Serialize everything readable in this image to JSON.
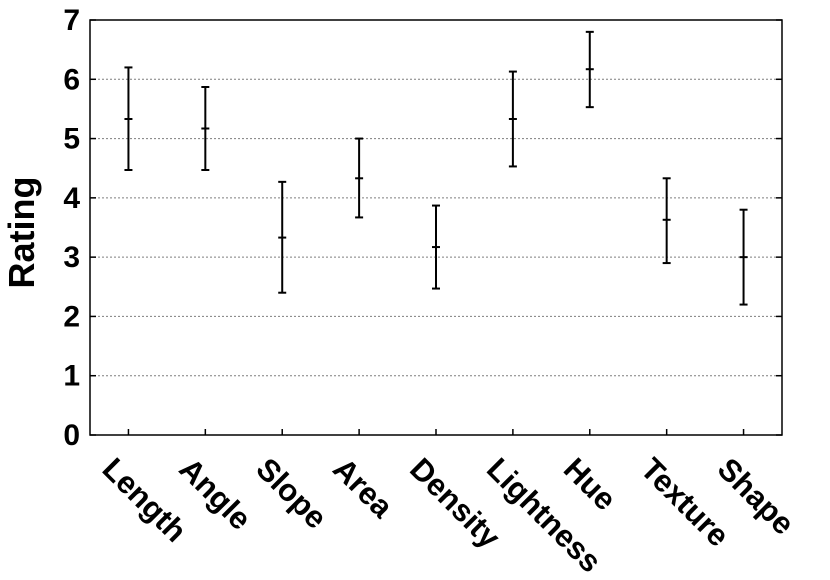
{
  "chart_data": {
    "type": "errorbar",
    "title": "",
    "xlabel": "",
    "ylabel": "Rating",
    "ylim": [
      0,
      7
    ],
    "yticks": [
      "0",
      "1",
      "2",
      "3",
      "4",
      "5",
      "6",
      "7"
    ],
    "grid": "horizontal-dotted",
    "categories": [
      "Length",
      "Angle",
      "Slope",
      "Area",
      "Density",
      "Lightness",
      "Hue",
      "Texture",
      "Shape"
    ],
    "series": [
      {
        "mean": [
          5.33,
          5.17,
          3.33,
          4.33,
          3.17,
          5.33,
          6.17,
          3.63,
          3.0
        ],
        "lower": [
          4.47,
          4.47,
          2.4,
          3.67,
          2.47,
          4.53,
          5.53,
          2.9,
          2.2
        ],
        "upper": [
          6.2,
          5.87,
          4.27,
          5.0,
          3.87,
          6.13,
          6.8,
          4.33,
          3.8
        ]
      }
    ]
  }
}
